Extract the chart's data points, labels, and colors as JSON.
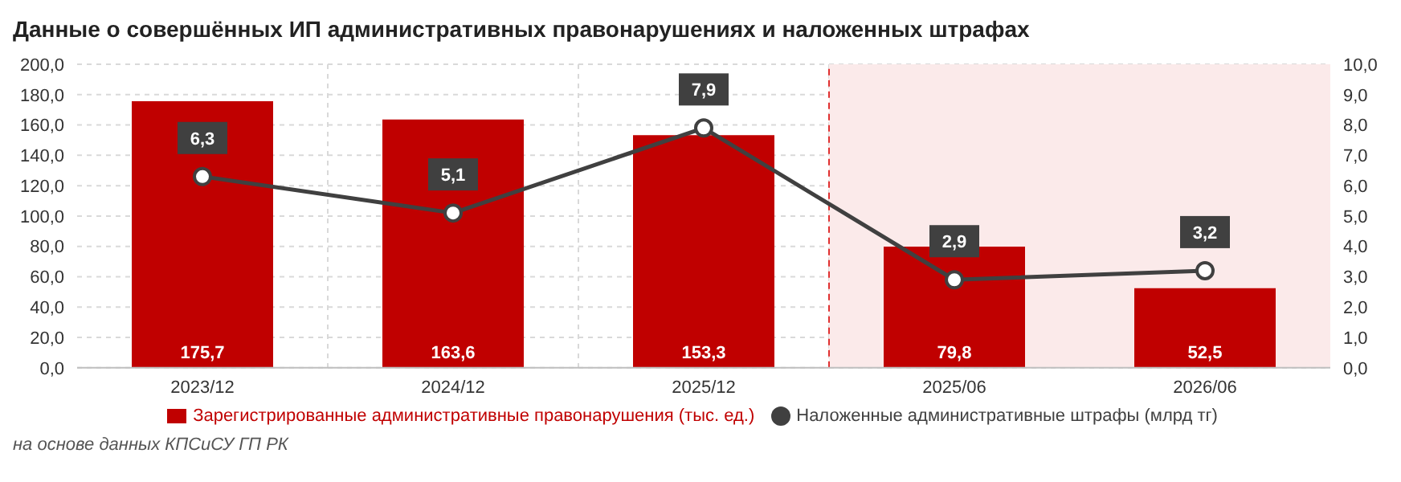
{
  "chart_data": {
    "type": "bar",
    "title": "Данные о совершённых ИП административных правонарушениях и наложенных штрафах",
    "categories": [
      "2023/12",
      "2024/12",
      "2025/12",
      "2025/06",
      "2026/06"
    ],
    "series": [
      {
        "name": "Зарегистрированные административные правонарушения (тыс. ед.)",
        "color": "#c00000",
        "values": [
          175.7,
          163.6,
          153.3,
          79.8,
          52.5
        ],
        "value_labels": [
          "175,7",
          "163,6",
          "153,3",
          "79,8",
          "52,5"
        ]
      },
      {
        "name": "Наложенные административные штрафы (млрд тг)",
        "type": "line",
        "axis": "y2",
        "color": "#404040",
        "values": [
          6.3,
          5.1,
          7.9,
          2.9,
          3.2
        ],
        "value_labels": [
          "6,3",
          "5,1",
          "7,9",
          "2,9",
          "3,2"
        ]
      }
    ],
    "ylim": [
      0,
      200
    ],
    "yticks": [
      {
        "value": 0,
        "label": "0,0"
      },
      {
        "value": 20,
        "label": "20,0"
      },
      {
        "value": 40,
        "label": "40,0"
      },
      {
        "value": 60,
        "label": "60,0"
      },
      {
        "value": 80,
        "label": "80,0"
      },
      {
        "value": 100,
        "label": "100,0"
      },
      {
        "value": 120,
        "label": "120,0"
      },
      {
        "value": 140,
        "label": "140,0"
      },
      {
        "value": 160,
        "label": "160,0"
      },
      {
        "value": 180,
        "label": "180,0"
      },
      {
        "value": 200,
        "label": "200,0"
      }
    ],
    "y2lim": [
      0,
      10
    ],
    "y2ticks": [
      {
        "value": 0,
        "label": "0,0"
      },
      {
        "value": 1,
        "label": "1,0"
      },
      {
        "value": 2,
        "label": "2,0"
      },
      {
        "value": 3,
        "label": "3,0"
      },
      {
        "value": 4,
        "label": "4,0"
      },
      {
        "value": 5,
        "label": "5,0"
      },
      {
        "value": 6,
        "label": "6,0"
      },
      {
        "value": 7,
        "label": "7,0"
      },
      {
        "value": 8,
        "label": "8,0"
      },
      {
        "value": 9,
        "label": "9,0"
      },
      {
        "value": 10,
        "label": "10,0"
      }
    ],
    "bands": [
      {
        "axis": "x",
        "from": "2025/06",
        "to": "2026/06",
        "color": "#fbeaea"
      }
    ],
    "ref_lines": [
      {
        "axis": "x",
        "value": "2025/06",
        "color": "#e03030",
        "line_style": "dashed"
      }
    ],
    "grid": true,
    "legend": "bottom",
    "marker": "circle",
    "annotations": [
      "на основе данных КПСиСУ ГП РК"
    ]
  }
}
